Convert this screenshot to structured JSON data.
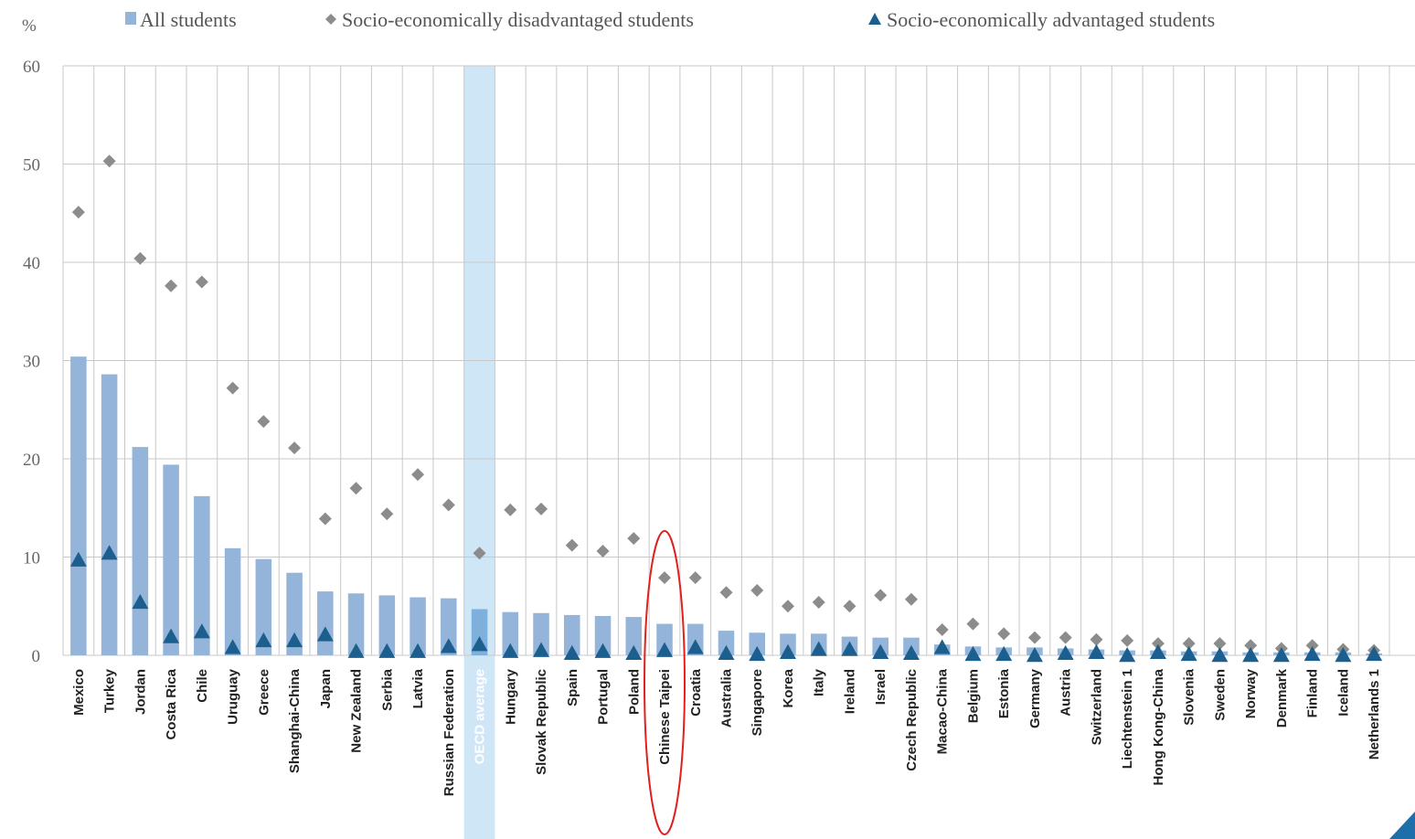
{
  "chart_data": {
    "type": "bar",
    "ylabel": "%",
    "ylim": [
      0,
      60
    ],
    "yticks": [
      0,
      10,
      20,
      30,
      40,
      50,
      60
    ],
    "grid": true,
    "legend_position": "top",
    "highlighted_category": "OECD average",
    "circled_category": "Chinese Taipei",
    "categories": [
      "Mexico",
      "Turkey",
      "Jordan",
      "Costa Rica",
      "Chile",
      "Uruguay",
      "Greece",
      "Shanghai-China",
      "Japan",
      "New Zealand",
      "Serbia",
      "Latvia",
      "Russian Federation",
      "OECD average",
      "Hungary",
      "Slovak Republic",
      "Spain",
      "Portugal",
      "Poland",
      "Chinese Taipei",
      "Croatia",
      "Australia",
      "Singapore",
      "Korea",
      "Italy",
      "Ireland",
      "Israel",
      "Czech Republic",
      "Macao-China",
      "Belgium",
      "Estonia",
      "Germany",
      "Austria",
      "Switzerland",
      "Liechtenstein 1",
      "Hong Kong-China",
      "Slovenia",
      "Sweden",
      "Norway",
      "Denmark",
      "Finland",
      "Iceland",
      "Netherlands 1"
    ],
    "series": [
      {
        "name": "All students",
        "type": "bar",
        "color": "#94b4d9",
        "values": [
          30.4,
          28.6,
          21.2,
          19.4,
          16.2,
          10.9,
          9.8,
          8.4,
          6.5,
          6.3,
          6.1,
          5.9,
          5.8,
          4.7,
          4.4,
          4.3,
          4.1,
          4.0,
          3.9,
          3.2,
          3.2,
          2.5,
          2.3,
          2.2,
          2.2,
          1.9,
          1.8,
          1.8,
          1.1,
          0.9,
          0.8,
          0.8,
          0.7,
          0.6,
          0.5,
          0.5,
          0.4,
          0.4,
          0.3,
          0.3,
          0.3,
          0.3,
          0.2
        ]
      },
      {
        "name": "Socio-economically disadvantaged students",
        "type": "scatter",
        "marker": "diamond",
        "color": "#8c8c8c",
        "values": [
          45.1,
          50.3,
          40.4,
          37.6,
          38.0,
          27.2,
          23.8,
          21.1,
          13.9,
          17.0,
          14.4,
          18.4,
          15.3,
          10.4,
          14.8,
          14.9,
          11.2,
          10.6,
          11.9,
          7.9,
          7.9,
          6.4,
          6.6,
          5.0,
          5.4,
          5.0,
          6.1,
          5.7,
          2.6,
          3.2,
          2.2,
          1.8,
          1.8,
          1.6,
          1.5,
          1.2,
          1.2,
          1.2,
          1.0,
          0.7,
          1.0,
          0.6,
          0.5
        ]
      },
      {
        "name": "Socio-economically advantaged students",
        "type": "scatter",
        "marker": "triangle",
        "color": "#1c5f8e",
        "values": [
          9.7,
          10.4,
          5.4,
          1.9,
          2.4,
          0.8,
          1.5,
          1.5,
          2.1,
          0.4,
          0.4,
          0.4,
          0.9,
          1.1,
          0.4,
          0.5,
          0.2,
          0.4,
          0.2,
          0.5,
          0.8,
          0.2,
          0.1,
          0.3,
          0.6,
          0.6,
          0.3,
          0.2,
          0.8,
          0.1,
          0.1,
          0.0,
          0.2,
          0.3,
          0.0,
          0.3,
          0.1,
          0.0,
          0.0,
          0.0,
          0.1,
          0.0,
          0.1
        ]
      }
    ]
  }
}
